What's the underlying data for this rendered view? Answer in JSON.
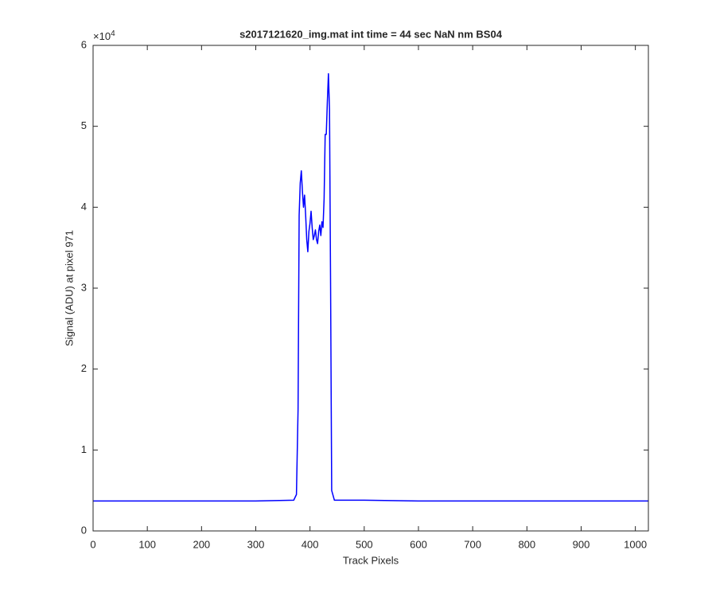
{
  "chart_data": {
    "type": "line",
    "title": "s2017121620_img.mat int time = 44 sec  NaN nm BS04",
    "x_label": "Track Pixels",
    "y_label": "Signal (ADU) at pixel 971",
    "y_multiplier": {
      "base": "×10",
      "exponent": "4"
    },
    "xlim": [
      0,
      1024
    ],
    "xticks": [
      0,
      100,
      200,
      300,
      400,
      500,
      600,
      700,
      800,
      900,
      1000
    ],
    "ylim": [
      0,
      6
    ],
    "yticks": [
      0,
      1,
      2,
      3,
      4,
      5,
      6
    ],
    "grid": false,
    "series": [
      {
        "name": "signal",
        "color": "#0000ff",
        "x": [
          0,
          100,
          200,
          300,
          370,
          375,
          378,
          380,
          382,
          384,
          386,
          388,
          390,
          392,
          394,
          396,
          398,
          400,
          402,
          404,
          406,
          408,
          410,
          412,
          414,
          416,
          418,
          420,
          422,
          424,
          426,
          428,
          430,
          432,
          434,
          436,
          438,
          440,
          445,
          500,
          600,
          700,
          800,
          900,
          1024
        ],
        "values": [
          0.37,
          0.37,
          0.37,
          0.37,
          0.38,
          0.45,
          1.5,
          3.9,
          4.3,
          4.45,
          4.2,
          4.0,
          4.15,
          3.9,
          3.6,
          3.45,
          3.7,
          3.8,
          3.95,
          3.75,
          3.6,
          3.65,
          3.72,
          3.6,
          3.55,
          3.7,
          3.78,
          3.65,
          3.82,
          3.75,
          4.1,
          4.9,
          4.9,
          5.3,
          5.65,
          5.2,
          3.0,
          0.5,
          0.38,
          0.38,
          0.37,
          0.37,
          0.37,
          0.37,
          0.37
        ]
      }
    ]
  }
}
